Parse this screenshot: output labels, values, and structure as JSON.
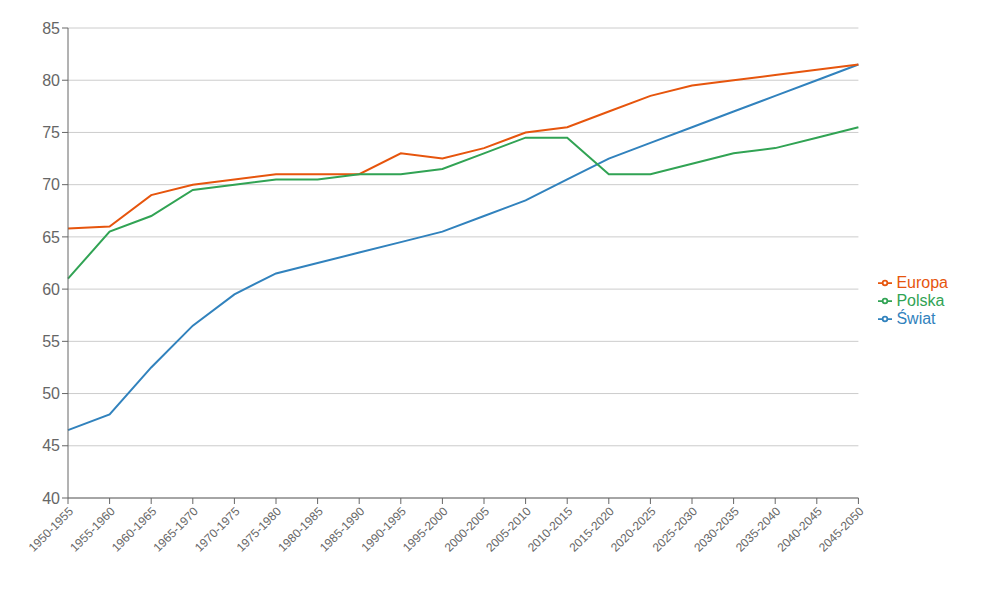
{
  "chart_data": {
    "type": "line",
    "categories": [
      "1950-1955",
      "1955-1960",
      "1960-1965",
      "1965-1970",
      "1970-1975",
      "1975-1980",
      "1980-1985",
      "1985-1990",
      "1990-1995",
      "1995-2000",
      "2000-2005",
      "2005-2010",
      "2010-2015",
      "2015-2020",
      "2020-2025",
      "2025-2030",
      "2030-2035",
      "2035-2040",
      "2040-2045",
      "2045-2050"
    ],
    "series": [
      {
        "name": "Świat",
        "color": "#3182bd",
        "values": [
          46.5,
          48.0,
          52.5,
          56.5,
          59.5,
          61.5,
          62.5,
          63.5,
          64.5,
          65.5,
          67.0,
          68.5,
          70.5,
          72.5,
          74.0,
          75.5,
          77.0,
          78.5,
          80.0,
          81.5
        ]
      },
      {
        "name": "Europa",
        "color": "#e6550d",
        "values": [
          65.8,
          66.0,
          69.0,
          70.0,
          70.5,
          71.0,
          71.0,
          71.0,
          73.0,
          72.5,
          73.5,
          75.0,
          75.5,
          77.0,
          78.5,
          79.5,
          80.0,
          80.5,
          81.0,
          81.5
        ]
      },
      {
        "name": "Polska",
        "color": "#31a354",
        "values": [
          61.0,
          65.5,
          67.0,
          69.5,
          70.0,
          70.5,
          70.5,
          71.0,
          71.0,
          71.5,
          73.0,
          74.5,
          74.5,
          71.0,
          71.0,
          72.0,
          73.0,
          73.5,
          74.5,
          75.5
        ]
      }
    ],
    "ylim": [
      40,
      85
    ],
    "yticks": [
      40,
      45,
      50,
      55,
      60,
      65,
      70,
      75,
      80,
      85
    ],
    "grid": true,
    "legend": "right"
  }
}
